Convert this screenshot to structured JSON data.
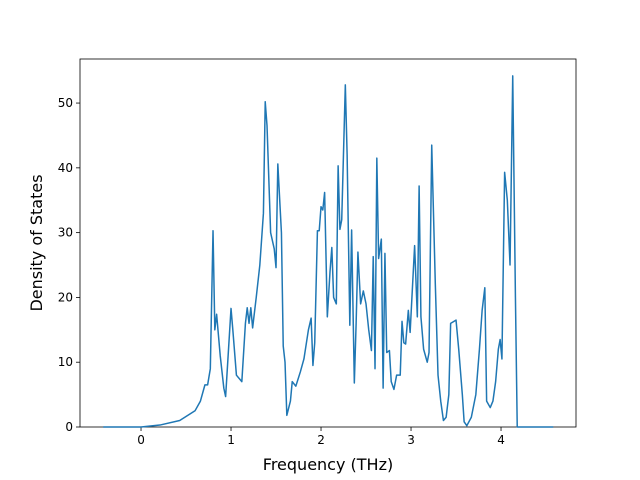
{
  "chart_data": {
    "type": "line",
    "xlabel": "Frequency (THz)",
    "ylabel": "Density of States",
    "xlim": [
      -0.678,
      4.833
    ],
    "ylim": [
      0,
      56.8
    ],
    "xticks": [
      0,
      1,
      2,
      3,
      4
    ],
    "yticks": [
      0,
      10,
      20,
      30,
      40,
      50
    ],
    "x": [
      -0.42,
      0,
      0.21,
      0.43,
      0.6,
      0.66,
      0.71,
      0.74,
      0.77,
      0.8,
      0.82,
      0.84,
      0.88,
      0.92,
      0.94,
      1.0,
      1.02,
      1.06,
      1.12,
      1.16,
      1.18,
      1.2,
      1.22,
      1.24,
      1.28,
      1.32,
      1.36,
      1.38,
      1.4,
      1.44,
      1.48,
      1.5,
      1.52,
      1.56,
      1.58,
      1.6,
      1.62,
      1.66,
      1.68,
      1.72,
      1.77,
      1.81,
      1.86,
      1.89,
      1.91,
      1.93,
      1.96,
      1.98,
      2.0,
      2.02,
      2.04,
      2.07,
      2.1,
      2.12,
      2.14,
      2.17,
      2.19,
      2.21,
      2.23,
      2.27,
      2.29,
      2.32,
      2.34,
      2.37,
      2.39,
      2.41,
      2.44,
      2.47,
      2.5,
      2.53,
      2.56,
      2.58,
      2.6,
      2.62,
      2.64,
      2.67,
      2.69,
      2.71,
      2.73,
      2.76,
      2.78,
      2.81,
      2.84,
      2.88,
      2.9,
      2.92,
      2.94,
      2.97,
      2.99,
      3.01,
      3.04,
      3.07,
      3.09,
      3.11,
      3.14,
      3.18,
      3.2,
      3.23,
      3.27,
      3.3,
      3.33,
      3.36,
      3.39,
      3.42,
      3.44,
      3.5,
      3.53,
      3.57,
      3.59,
      3.62,
      3.67,
      3.72,
      3.76,
      3.79,
      3.82,
      3.84,
      3.88,
      3.91,
      3.94,
      3.97,
      3.99,
      4.01,
      4.04,
      4.07,
      4.1,
      4.13,
      4.16,
      4.18,
      4.58
    ],
    "series": [
      {
        "color": "#1f77b4",
        "values": [
          0,
          0,
          0.3,
          1,
          2.5,
          4,
          6.5,
          6.5,
          9,
          30.3,
          15,
          17.4,
          11,
          6,
          4.7,
          18.3,
          15,
          8,
          7,
          16,
          18.4,
          16,
          18.4,
          15.3,
          20,
          25,
          33,
          50.2,
          46.5,
          30,
          27.5,
          24.6,
          40.6,
          30,
          12.5,
          10,
          1.8,
          4,
          7,
          6.3,
          8.5,
          10.5,
          15,
          16.8,
          9.5,
          13,
          30.3,
          30.3,
          34,
          33.5,
          36.2,
          17,
          24,
          27.7,
          20,
          19,
          40.3,
          30.5,
          32,
          52.8,
          42,
          15.7,
          30.4,
          6.8,
          16,
          27,
          19,
          21,
          19,
          15,
          11.8,
          26.3,
          9,
          41.5,
          26,
          29,
          6,
          26.8,
          11.5,
          11.8,
          7,
          5.8,
          8,
          8,
          16.3,
          13,
          12.8,
          18,
          14.6,
          20,
          28,
          17,
          37.2,
          17,
          12,
          10,
          11.5,
          43.5,
          22,
          8,
          4,
          1,
          1.5,
          5,
          16,
          16.5,
          12,
          5,
          0.8,
          0.2,
          1.5,
          5,
          12,
          18,
          21.5,
          4,
          3,
          4,
          7,
          12,
          13.5,
          10.5,
          39.3,
          35,
          25,
          54.2,
          20,
          0,
          0
        ]
      }
    ]
  }
}
